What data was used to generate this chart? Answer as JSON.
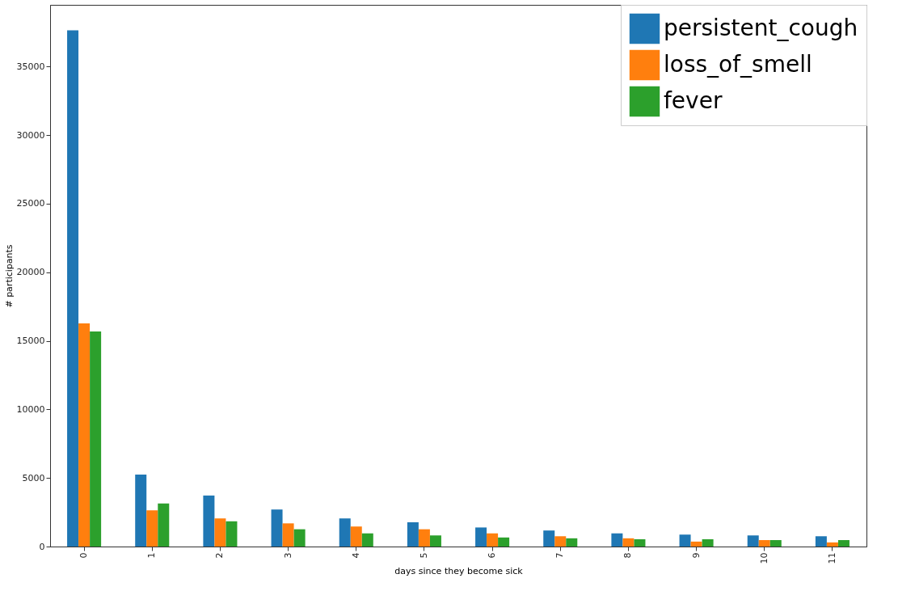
{
  "chart_data": {
    "type": "bar",
    "xlabel": "days since they become sick",
    "ylabel": "# participants",
    "categories": [
      "0",
      "1",
      "2",
      "3",
      "4",
      "5",
      "6",
      "7",
      "8",
      "9",
      "10",
      "11"
    ],
    "series": [
      {
        "name": "persistent_cough",
        "color": "#1f77b4",
        "values": [
          37650,
          5250,
          3720,
          2700,
          2050,
          1770,
          1390,
          1170,
          960,
          870,
          810,
          750
        ]
      },
      {
        "name": "loss_of_smell",
        "color": "#ff7f0e",
        "values": [
          16270,
          2640,
          2050,
          1690,
          1460,
          1260,
          960,
          750,
          600,
          360,
          470,
          300
        ]
      },
      {
        "name": "fever",
        "color": "#2ca02c",
        "values": [
          15680,
          3140,
          1840,
          1260,
          960,
          810,
          660,
          600,
          530,
          530,
          470,
          470
        ]
      }
    ],
    "ylim": [
      0,
      39500
    ],
    "yticks": [
      0,
      5000,
      10000,
      15000,
      20000,
      25000,
      30000,
      35000
    ],
    "grid": false,
    "legend": "top right"
  }
}
